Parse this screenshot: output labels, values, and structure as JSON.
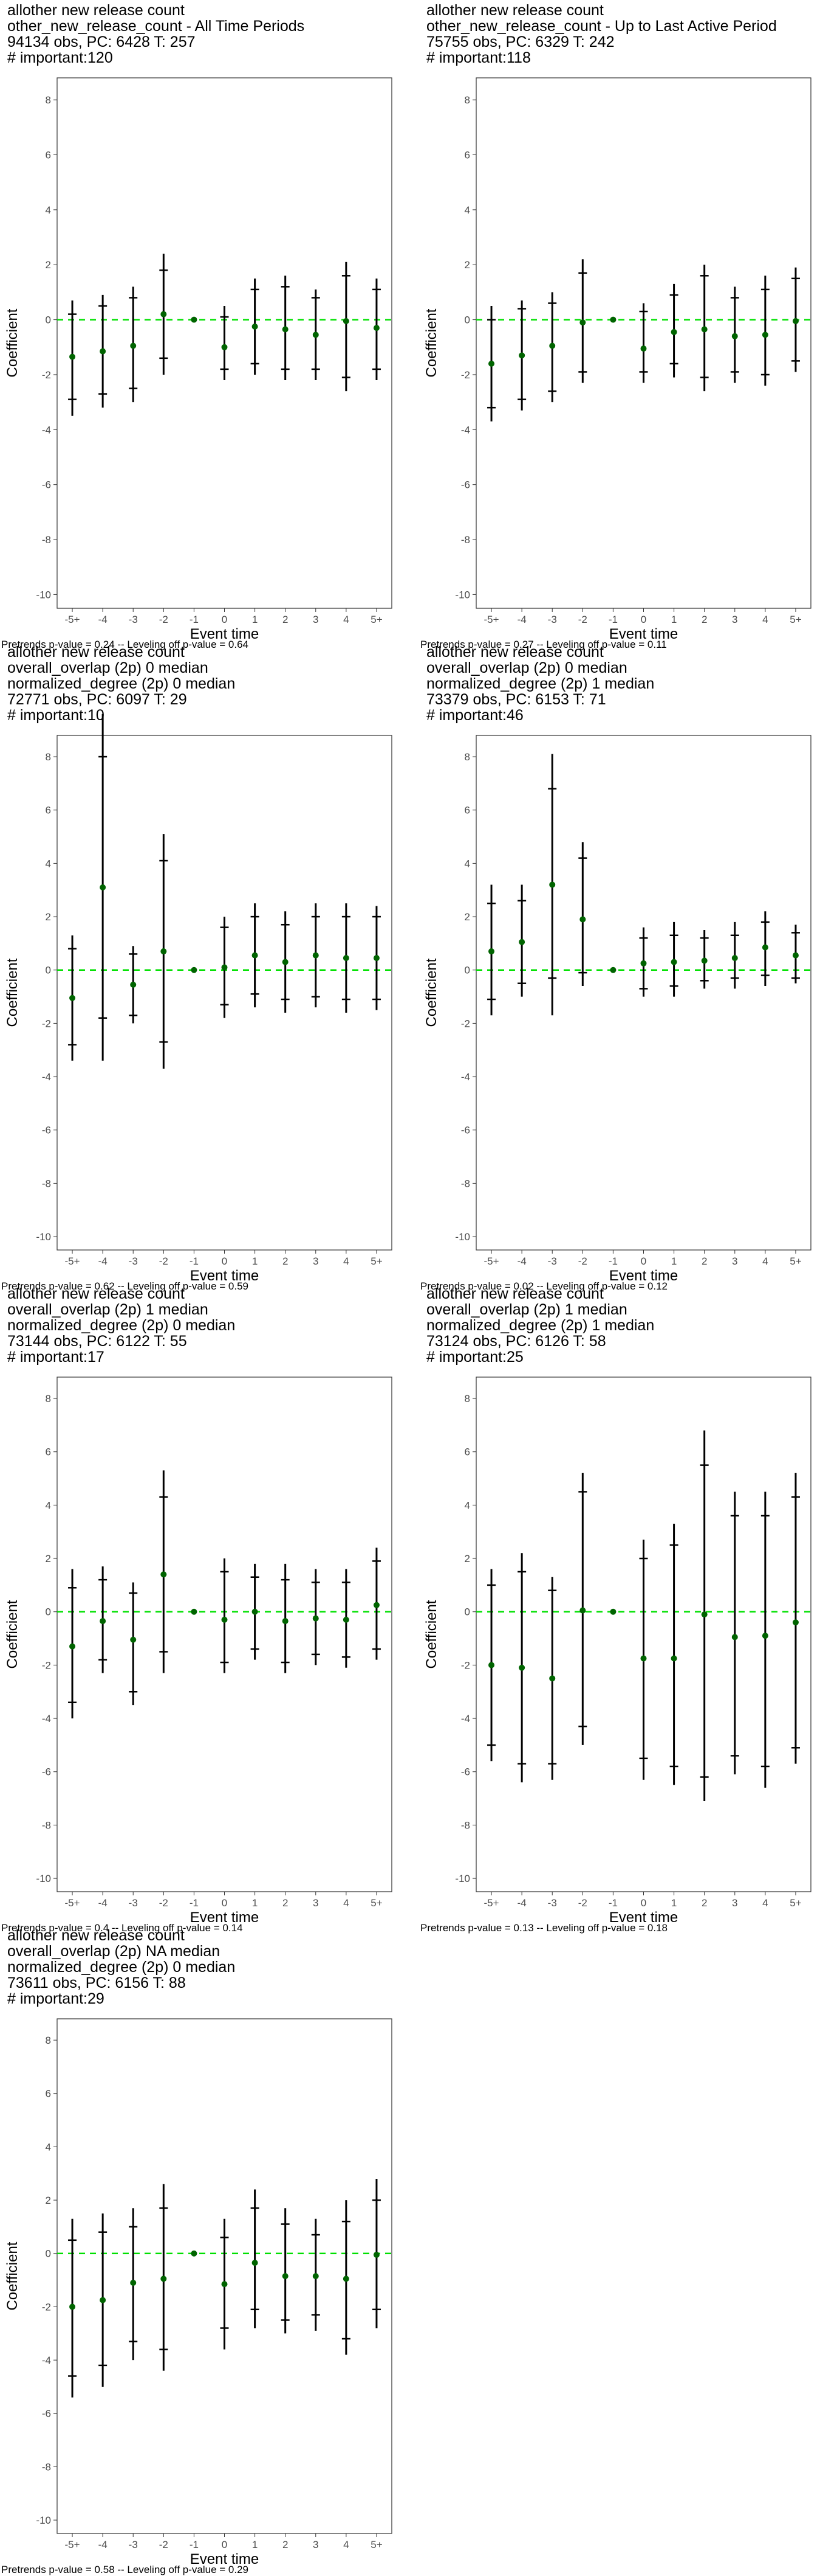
{
  "chart_data": [
    {
      "type": "scatter",
      "title_lines": [
        "allother new release count",
        "other_new_release_count - All Time Periods",
        "94134 obs, PC: 6428 T: 257",
        "# important:120"
      ],
      "xlabel": "Event time",
      "ylabel": "Coefficient",
      "categories": [
        "-5+",
        "-4",
        "-3",
        "-2",
        "-1",
        "0",
        "1",
        "2",
        "3",
        "4",
        "5+"
      ],
      "ylim": [
        -10.5,
        8.8
      ],
      "yticks": [
        8,
        6,
        4,
        2,
        0,
        -2,
        -4,
        -6,
        -8,
        -10
      ],
      "values": [
        -1.35,
        -1.15,
        -0.95,
        0.2,
        0,
        -1.0,
        -0.25,
        -0.35,
        -0.55,
        -0.05,
        -0.3
      ],
      "ci_outer": [
        [
          -3.5,
          0.7
        ],
        [
          -3.2,
          0.9
        ],
        [
          -3.0,
          1.2
        ],
        [
          -2.0,
          2.4
        ],
        null,
        [
          -2.2,
          0.5
        ],
        [
          -2.0,
          1.5
        ],
        [
          -2.2,
          1.6
        ],
        [
          -2.2,
          1.1
        ],
        [
          -2.6,
          2.1
        ],
        [
          -2.2,
          1.5
        ]
      ],
      "ci_inner": [
        [
          -2.9,
          0.2
        ],
        [
          -2.7,
          0.5
        ],
        [
          -2.5,
          0.8
        ],
        [
          -1.4,
          1.8
        ],
        null,
        [
          -1.8,
          0.1
        ],
        [
          -1.6,
          1.1
        ],
        [
          -1.8,
          1.2
        ],
        [
          -1.8,
          0.8
        ],
        [
          -2.1,
          1.6
        ],
        [
          -1.8,
          1.1
        ]
      ],
      "footnote": "Pretrends p-value = 0.24 -- Leveling off p-value = 0.64",
      "colors": {
        "point": "#006400",
        "reference": "#00e000",
        "bar": "#000000"
      }
    },
    {
      "type": "scatter",
      "title_lines": [
        "allother new release count",
        "other_new_release_count - Up to Last Active Period",
        "75755 obs, PC: 6329 T: 242",
        "# important:118"
      ],
      "xlabel": "Event time",
      "ylabel": "Coefficient",
      "categories": [
        "-5+",
        "-4",
        "-3",
        "-2",
        "-1",
        "0",
        "1",
        "2",
        "3",
        "4",
        "5+"
      ],
      "ylim": [
        -10.5,
        8.8
      ],
      "yticks": [
        8,
        6,
        4,
        2,
        0,
        -2,
        -4,
        -6,
        -8,
        -10
      ],
      "values": [
        -1.6,
        -1.3,
        -0.95,
        -0.1,
        0,
        -1.05,
        -0.45,
        -0.35,
        -0.6,
        -0.55,
        -0.05
      ],
      "ci_outer": [
        [
          -3.7,
          0.5
        ],
        [
          -3.3,
          0.7
        ],
        [
          -3.0,
          1.0
        ],
        [
          -2.3,
          2.2
        ],
        null,
        [
          -2.3,
          0.6
        ],
        [
          -2.1,
          1.3
        ],
        [
          -2.6,
          2.0
        ],
        [
          -2.3,
          1.2
        ],
        [
          -2.4,
          1.6
        ],
        [
          -1.9,
          1.9
        ]
      ],
      "ci_inner": [
        [
          -3.2,
          0.0
        ],
        [
          -2.9,
          0.4
        ],
        [
          -2.6,
          0.6
        ],
        [
          -1.9,
          1.7
        ],
        null,
        [
          -1.9,
          0.3
        ],
        [
          -1.6,
          0.9
        ],
        [
          -2.1,
          1.6
        ],
        [
          -1.9,
          0.8
        ],
        [
          -2.0,
          1.1
        ],
        [
          -1.5,
          1.5
        ]
      ],
      "footnote": "Pretrends p-value = 0.27 -- Leveling off p-value = 0.11",
      "colors": {
        "point": "#006400",
        "reference": "#00e000",
        "bar": "#000000"
      }
    },
    {
      "type": "scatter",
      "title_lines": [
        "allother new release count",
        "overall_overlap (2p) 0 median",
        "normalized_degree (2p) 0 median",
        "72771 obs, PC: 6097 T: 29",
        "# important:10"
      ],
      "xlabel": "Event time",
      "ylabel": "Coefficient",
      "categories": [
        "-5+",
        "-4",
        "-3",
        "-2",
        "-1",
        "0",
        "1",
        "2",
        "3",
        "4",
        "5+"
      ],
      "ylim": [
        -10.5,
        8.8
      ],
      "yticks": [
        8,
        6,
        4,
        2,
        0,
        -2,
        -4,
        -6,
        -8,
        -10
      ],
      "values": [
        -1.05,
        3.1,
        -0.55,
        0.7,
        0,
        0.1,
        0.55,
        0.3,
        0.55,
        0.45,
        0.45
      ],
      "ci_outer": [
        [
          -3.4,
          1.3
        ],
        [
          -3.4,
          9.6
        ],
        [
          -2.0,
          0.9
        ],
        [
          -3.7,
          5.1
        ],
        null,
        [
          -1.8,
          2.0
        ],
        [
          -1.4,
          2.5
        ],
        [
          -1.6,
          2.2
        ],
        [
          -1.4,
          2.5
        ],
        [
          -1.6,
          2.5
        ],
        [
          -1.5,
          2.4
        ]
      ],
      "ci_inner": [
        [
          -2.8,
          0.8
        ],
        [
          -1.8,
          8.0
        ],
        [
          -1.7,
          0.6
        ],
        [
          -2.7,
          4.1
        ],
        null,
        [
          -1.3,
          1.6
        ],
        [
          -0.9,
          2.0
        ],
        [
          -1.1,
          1.7
        ],
        [
          -1.0,
          2.0
        ],
        [
          -1.1,
          2.0
        ],
        [
          -1.1,
          2.0
        ]
      ],
      "footnote": "Pretrends p-value = 0.62 -- Leveling off p-value = 0.59",
      "colors": {
        "point": "#006400",
        "reference": "#00e000",
        "bar": "#000000"
      }
    },
    {
      "type": "scatter",
      "title_lines": [
        "allother new release count",
        "overall_overlap (2p) 0 median",
        "normalized_degree (2p) 1 median",
        "73379 obs, PC: 6153 T: 71",
        "# important:46"
      ],
      "xlabel": "Event time",
      "ylabel": "Coefficient",
      "categories": [
        "-5+",
        "-4",
        "-3",
        "-2",
        "-1",
        "0",
        "1",
        "2",
        "3",
        "4",
        "5+"
      ],
      "ylim": [
        -10.5,
        8.8
      ],
      "yticks": [
        8,
        6,
        4,
        2,
        0,
        -2,
        -4,
        -6,
        -8,
        -10
      ],
      "values": [
        0.7,
        1.05,
        3.2,
        1.9,
        0,
        0.25,
        0.3,
        0.35,
        0.45,
        0.85,
        0.55
      ],
      "ci_outer": [
        [
          -1.7,
          3.2
        ],
        [
          -1.0,
          3.2
        ],
        [
          -1.7,
          8.1
        ],
        [
          -0.6,
          4.8
        ],
        null,
        [
          -1.0,
          1.6
        ],
        [
          -1.0,
          1.8
        ],
        [
          -0.7,
          1.5
        ],
        [
          -0.7,
          1.8
        ],
        [
          -0.6,
          2.2
        ],
        [
          -0.5,
          1.7
        ]
      ],
      "ci_inner": [
        [
          -1.1,
          2.5
        ],
        [
          -0.5,
          2.6
        ],
        [
          -0.3,
          6.8
        ],
        [
          -0.1,
          4.2
        ],
        null,
        [
          -0.7,
          1.2
        ],
        [
          -0.6,
          1.3
        ],
        [
          -0.4,
          1.2
        ],
        [
          -0.3,
          1.3
        ],
        [
          -0.2,
          1.8
        ],
        [
          -0.3,
          1.4
        ]
      ],
      "footnote": "Pretrends p-value = 0.02 -- Leveling off p-value = 0.12",
      "colors": {
        "point": "#006400",
        "reference": "#00e000",
        "bar": "#000000"
      }
    },
    {
      "type": "scatter",
      "title_lines": [
        "allother new release count",
        "overall_overlap (2p) 1 median",
        "normalized_degree (2p) 0 median",
        "73144 obs, PC: 6122 T: 55",
        "# important:17"
      ],
      "xlabel": "Event time",
      "ylabel": "Coefficient",
      "categories": [
        "-5+",
        "-4",
        "-3",
        "-2",
        "-1",
        "0",
        "1",
        "2",
        "3",
        "4",
        "5+"
      ],
      "ylim": [
        -10.5,
        8.8
      ],
      "yticks": [
        8,
        6,
        4,
        2,
        0,
        -2,
        -4,
        -6,
        -8,
        -10
      ],
      "values": [
        -1.3,
        -0.35,
        -1.05,
        1.4,
        0,
        -0.3,
        0.0,
        -0.35,
        -0.25,
        -0.3,
        0.25
      ],
      "ci_outer": [
        [
          -4.0,
          1.6
        ],
        [
          -2.3,
          1.7
        ],
        [
          -3.5,
          1.1
        ],
        [
          -2.3,
          5.3
        ],
        null,
        [
          -2.3,
          2.0
        ],
        [
          -1.8,
          1.8
        ],
        [
          -2.3,
          1.8
        ],
        [
          -2.0,
          1.6
        ],
        [
          -2.1,
          1.6
        ],
        [
          -1.8,
          2.4
        ]
      ],
      "ci_inner": [
        [
          -3.4,
          0.9
        ],
        [
          -1.8,
          1.2
        ],
        [
          -3.0,
          0.7
        ],
        [
          -1.5,
          4.3
        ],
        null,
        [
          -1.9,
          1.5
        ],
        [
          -1.4,
          1.3
        ],
        [
          -1.9,
          1.2
        ],
        [
          -1.6,
          1.1
        ],
        [
          -1.7,
          1.1
        ],
        [
          -1.4,
          1.9
        ]
      ],
      "footnote": "Pretrends p-value = 0.4 -- Leveling off p-value = 0.14",
      "colors": {
        "point": "#006400",
        "reference": "#00e000",
        "bar": "#000000"
      }
    },
    {
      "type": "scatter",
      "title_lines": [
        "allother new release count",
        "overall_overlap (2p) 1 median",
        "normalized_degree (2p) 1 median",
        "73124 obs, PC: 6126 T: 58",
        "# important:25"
      ],
      "xlabel": "Event time",
      "ylabel": "Coefficient",
      "categories": [
        "-5+",
        "-4",
        "-3",
        "-2",
        "-1",
        "0",
        "1",
        "2",
        "3",
        "4",
        "5+"
      ],
      "ylim": [
        -10.5,
        8.8
      ],
      "yticks": [
        8,
        6,
        4,
        2,
        0,
        -2,
        -4,
        -6,
        -8,
        -10
      ],
      "values": [
        -2.0,
        -2.1,
        -2.5,
        0.05,
        0,
        -1.75,
        -1.75,
        -0.1,
        -0.95,
        -0.9,
        -0.4
      ],
      "ci_outer": [
        [
          -5.6,
          1.6
        ],
        [
          -6.4,
          2.2
        ],
        [
          -6.3,
          1.3
        ],
        [
          -5.0,
          5.2
        ],
        null,
        [
          -6.3,
          2.7
        ],
        [
          -6.5,
          3.3
        ],
        [
          -7.1,
          6.8
        ],
        [
          -6.1,
          4.5
        ],
        [
          -6.6,
          4.5
        ],
        [
          -5.7,
          5.2
        ]
      ],
      "ci_inner": [
        [
          -5.0,
          1.0
        ],
        [
          -5.7,
          1.5
        ],
        [
          -5.7,
          0.8
        ],
        [
          -4.3,
          4.5
        ],
        null,
        [
          -5.5,
          2.0
        ],
        [
          -5.8,
          2.5
        ],
        [
          -6.2,
          5.5
        ],
        [
          -5.4,
          3.6
        ],
        [
          -5.8,
          3.6
        ],
        [
          -5.1,
          4.3
        ]
      ],
      "footnote": "Pretrends p-value = 0.13 -- Leveling off p-value = 0.18",
      "colors": {
        "point": "#006400",
        "reference": "#00e000",
        "bar": "#000000"
      }
    },
    {
      "type": "scatter",
      "title_lines": [
        "allother new release count",
        "overall_overlap (2p) NA median",
        "normalized_degree (2p) 0 median",
        "73611 obs, PC: 6156 T: 88",
        "# important:29"
      ],
      "xlabel": "Event time",
      "ylabel": "Coefficient",
      "categories": [
        "-5+",
        "-4",
        "-3",
        "-2",
        "-1",
        "0",
        "1",
        "2",
        "3",
        "4",
        "5+"
      ],
      "ylim": [
        -10.5,
        8.8
      ],
      "yticks": [
        8,
        6,
        4,
        2,
        0,
        -2,
        -4,
        -6,
        -8,
        -10
      ],
      "values": [
        -2.0,
        -1.75,
        -1.1,
        -0.95,
        0,
        -1.15,
        -0.35,
        -0.85,
        -0.85,
        -0.95,
        -0.05
      ],
      "ci_outer": [
        [
          -5.4,
          1.3
        ],
        [
          -5.0,
          1.5
        ],
        [
          -4.0,
          1.7
        ],
        [
          -4.4,
          2.6
        ],
        null,
        [
          -3.6,
          1.3
        ],
        [
          -2.8,
          2.4
        ],
        [
          -3.0,
          1.7
        ],
        [
          -2.9,
          1.3
        ],
        [
          -3.8,
          2.0
        ],
        [
          -2.8,
          2.8
        ]
      ],
      "ci_inner": [
        [
          -4.6,
          0.5
        ],
        [
          -4.2,
          0.8
        ],
        [
          -3.3,
          1.0
        ],
        [
          -3.6,
          1.7
        ],
        null,
        [
          -2.8,
          0.6
        ],
        [
          -2.1,
          1.7
        ],
        [
          -2.5,
          1.1
        ],
        [
          -2.3,
          0.7
        ],
        [
          -3.2,
          1.2
        ],
        [
          -2.1,
          2.0
        ]
      ],
      "footnote": "Pretrends p-value = 0.58 -- Leveling off p-value = 0.29",
      "colors": {
        "point": "#006400",
        "reference": "#00e000",
        "bar": "#000000"
      }
    }
  ]
}
